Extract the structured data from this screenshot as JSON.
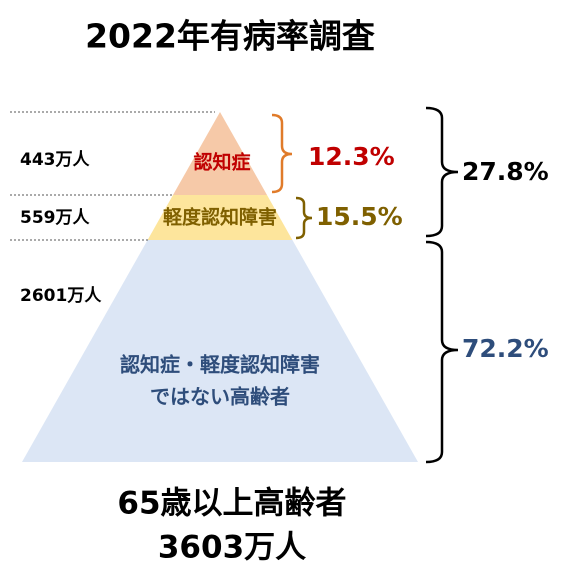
{
  "title": "2022年有病率調査",
  "layers": [
    {
      "count": "443万人",
      "label": "認知症",
      "percent": "12.3%"
    },
    {
      "count": "559万人",
      "label": "軽度認知障害",
      "percent": "15.5%"
    },
    {
      "count": "2601万人",
      "label_lines": [
        "認知症・軽度認知障害",
        "ではない高齢者"
      ]
    }
  ],
  "groups": [
    {
      "percent": "27.8%"
    },
    {
      "percent": "72.2%"
    }
  ],
  "footer": {
    "lines": [
      "65歳以上高齢者",
      "3603万人"
    ]
  }
}
